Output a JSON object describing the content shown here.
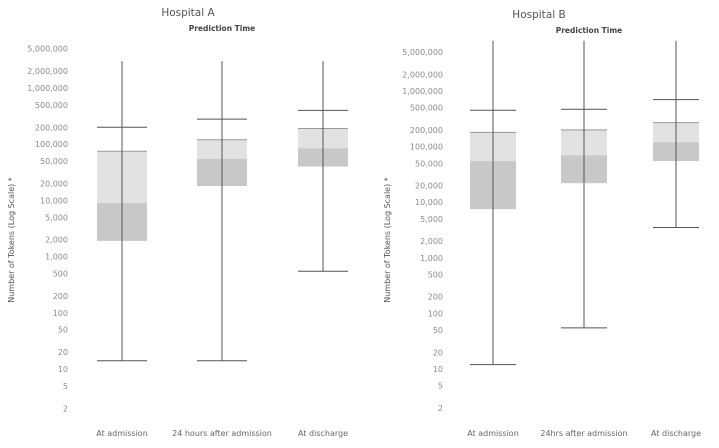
{
  "chart_data": [
    {
      "type": "box",
      "title": "Hospital A",
      "subtitle": "Prediction Time",
      "ylabel": "Number of Tokens (Log Scale) *",
      "yscale": "log",
      "ylim": [
        1.5,
        6000000
      ],
      "y_ticks": [
        "5,000,000",
        "2,000,000",
        "1,000,000",
        "500,000",
        "200,000",
        "100,000",
        "50,000",
        "20,000",
        "10,000",
        "5,000",
        "2,000",
        "1,000",
        "500",
        "200",
        "100",
        "50",
        "20",
        "10",
        "5",
        "2"
      ],
      "y_tick_values": [
        5000000,
        2000000,
        1000000,
        500000,
        200000,
        100000,
        50000,
        20000,
        10000,
        5000,
        2000,
        1000,
        500,
        200,
        100,
        50,
        20,
        10,
        5,
        2
      ],
      "categories": [
        "At admission",
        "24 hours after admission",
        "At discharge"
      ],
      "boxes": [
        {
          "line_max": 3000000,
          "whisker_high": 200000,
          "q3": 75000,
          "median": 9000,
          "q1": 1900,
          "whisker_low": 14
        },
        {
          "line_max": 3000000,
          "whisker_high": 280000,
          "q3": 120000,
          "median": 55000,
          "q1": 18000,
          "whisker_low": 14
        },
        {
          "line_max": 3000000,
          "whisker_high": 400000,
          "q3": 190000,
          "median": 85000,
          "q1": 40000,
          "whisker_low": 550
        }
      ]
    },
    {
      "type": "box",
      "title": "Hospital B",
      "subtitle": "Prediction Time",
      "ylabel": "Number of Tokens (Log Scale) *",
      "yscale": "log",
      "ylim": [
        1.5,
        10000000
      ],
      "y_ticks": [
        "5,000,000",
        "2,000,000",
        "1,000,000",
        "500,000",
        "200,000",
        "100,000",
        "50,000",
        "20,000",
        "10,000",
        "5,000",
        "2,000",
        "1,000",
        "500",
        "200",
        "100",
        "50",
        "20",
        "10",
        "5",
        "2"
      ],
      "y_tick_values": [
        5000000,
        2000000,
        1000000,
        500000,
        200000,
        100000,
        50000,
        20000,
        10000,
        5000,
        2000,
        1000,
        500,
        200,
        100,
        50,
        20,
        10,
        5,
        2
      ],
      "categories": [
        "At admission",
        "24hrs after admission",
        "At discharge"
      ],
      "boxes": [
        {
          "line_max": 8000000,
          "whisker_high": 450000,
          "q3": 180000,
          "median": 55000,
          "q1": 7500,
          "whisker_low": 12
        },
        {
          "line_max": 8000000,
          "whisker_high": 470000,
          "q3": 200000,
          "median": 70000,
          "q1": 22000,
          "whisker_low": 55
        },
        {
          "line_max": 8000000,
          "whisker_high": 700000,
          "q3": 270000,
          "median": 120000,
          "q1": 55000,
          "whisker_low": 3500
        }
      ]
    }
  ],
  "colors": {
    "upper_box": "#e2e2e2",
    "lower_box": "#c8c8c8",
    "line": "#555555"
  }
}
